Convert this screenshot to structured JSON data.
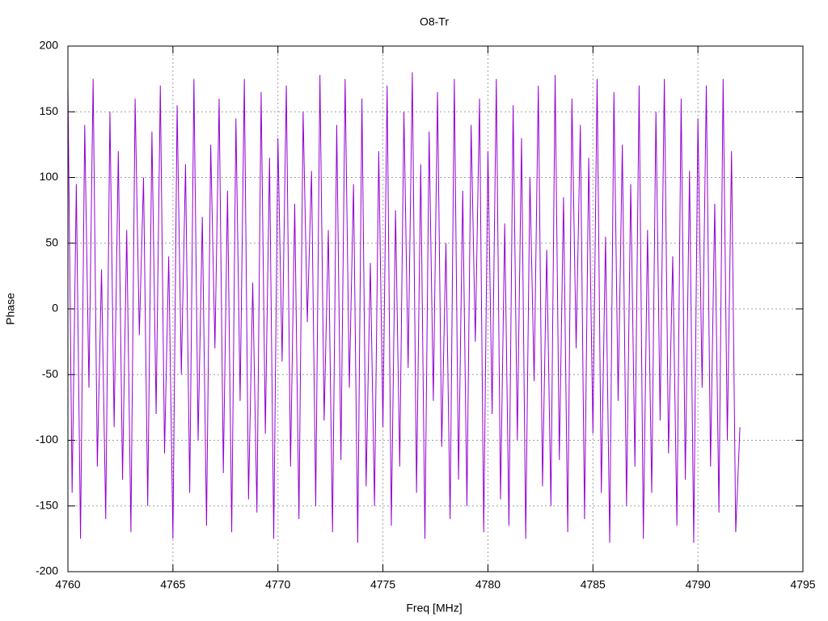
{
  "chart_data": {
    "type": "line",
    "title": "O8-Tr",
    "x_label": "Freq [MHz]",
    "y_label": "Phase",
    "x": [
      4760,
      4760.2,
      4760.4,
      4760.6,
      4760.8,
      4761,
      4761.2,
      4761.4,
      4761.6,
      4761.8,
      4762,
      4762.2,
      4762.4,
      4762.6,
      4762.8,
      4763,
      4763.2,
      4763.4,
      4763.6,
      4763.8,
      4764,
      4764.2,
      4764.4,
      4764.6,
      4764.8,
      4765,
      4765.2,
      4765.4,
      4765.6,
      4765.8,
      4766,
      4766.2,
      4766.4,
      4766.6,
      4766.8,
      4767,
      4767.2,
      4767.4,
      4767.6,
      4767.8,
      4768,
      4768.2,
      4768.4,
      4768.6,
      4768.8,
      4769,
      4769.2,
      4769.4,
      4769.6,
      4769.8,
      4770,
      4770.2,
      4770.4,
      4770.6,
      4770.8,
      4771,
      4771.2,
      4771.4,
      4771.6,
      4771.8,
      4772,
      4772.2,
      4772.4,
      4772.6,
      4772.8,
      4773,
      4773.2,
      4773.4,
      4773.6,
      4773.8,
      4774,
      4774.2,
      4774.4,
      4774.6,
      4774.8,
      4775,
      4775.2,
      4775.4,
      4775.6,
      4775.8,
      4776,
      4776.2,
      4776.4,
      4776.6,
      4776.8,
      4777,
      4777.2,
      4777.4,
      4777.6,
      4777.8,
      4778,
      4778.2,
      4778.4,
      4778.6,
      4778.8,
      4779,
      4779.2,
      4779.4,
      4779.6,
      4779.8,
      4780,
      4780.2,
      4780.4,
      4780.6,
      4780.8,
      4781,
      4781.2,
      4781.4,
      4781.6,
      4781.8,
      4782,
      4782.2,
      4782.4,
      4782.6,
      4782.8,
      4783,
      4783.2,
      4783.4,
      4783.6,
      4783.8,
      4784,
      4784.2,
      4784.4,
      4784.6,
      4784.8,
      4785,
      4785.2,
      4785.4,
      4785.6,
      4785.8,
      4786,
      4786.2,
      4786.4,
      4786.6,
      4786.8,
      4787,
      4787.2,
      4787.4,
      4787.6,
      4787.8,
      4788,
      4788.2,
      4788.4,
      4788.6,
      4788.8,
      4789,
      4789.2,
      4789.4,
      4789.6,
      4789.8,
      4790,
      4790.2,
      4790.4,
      4790.6,
      4790.8,
      4791,
      4791.2,
      4791.4,
      4791.6,
      4791.8,
      4792
    ],
    "values": [
      170,
      -140,
      95,
      -175,
      140,
      -60,
      175,
      -120,
      30,
      -160,
      150,
      -90,
      120,
      -130,
      60,
      -170,
      160,
      -20,
      100,
      -150,
      135,
      -80,
      170,
      -110,
      40,
      -175,
      155,
      -50,
      110,
      -140,
      175,
      -100,
      70,
      -165,
      125,
      -30,
      160,
      -125,
      90,
      -170,
      145,
      -70,
      175,
      -145,
      20,
      -155,
      165,
      -95,
      115,
      -175,
      130,
      -40,
      170,
      -120,
      80,
      -160,
      150,
      -10,
      105,
      -150,
      178,
      -85,
      60,
      -170,
      140,
      -115,
      175,
      -60,
      95,
      -178,
      160,
      -135,
      35,
      -150,
      120,
      -90,
      170,
      -165,
      75,
      -120,
      150,
      -45,
      180,
      -140,
      110,
      -175,
      135,
      -70,
      165,
      -105,
      50,
      -160,
      175,
      -130,
      90,
      -150,
      140,
      -25,
      160,
      -170,
      120,
      -80,
      175,
      -145,
      65,
      -165,
      155,
      -100,
      130,
      -175,
      100,
      -55,
      170,
      -135,
      45,
      -150,
      178,
      -115,
      85,
      -170,
      160,
      -30,
      140,
      -160,
      115,
      -95,
      175,
      -140,
      55,
      -178,
      165,
      -70,
      125,
      -150,
      95,
      -120,
      170,
      -175,
      60,
      -140,
      150,
      -85,
      175,
      -110,
      40,
      -165,
      160,
      -130,
      105,
      -178,
      145,
      -60,
      170,
      -120,
      80,
      -155,
      175,
      -100,
      120,
      -170,
      -90
    ],
    "color": "#9400d3",
    "xlim": [
      4760,
      4795
    ],
    "xticks": [
      4760,
      4765,
      4770,
      4775,
      4780,
      4785,
      4790,
      4795
    ],
    "ylim": [
      -200,
      200
    ],
    "yticks": [
      -200,
      -150,
      -100,
      -50,
      0,
      50,
      100,
      150,
      200
    ],
    "grid": true
  }
}
